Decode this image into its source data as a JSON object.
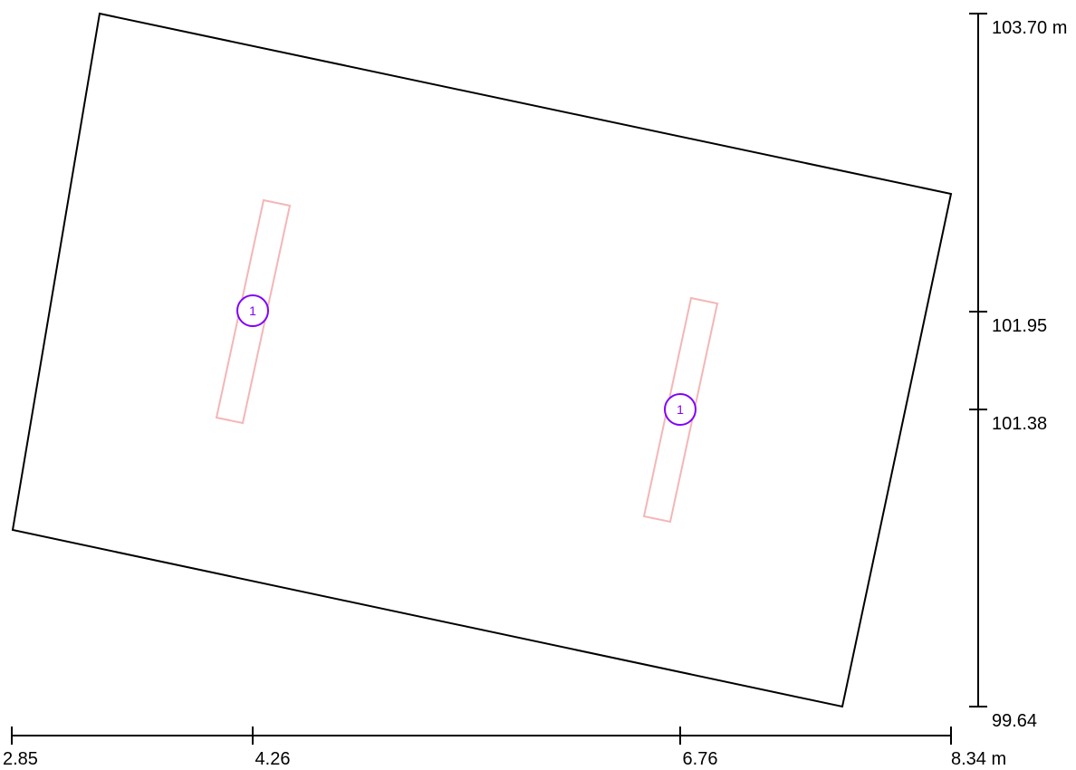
{
  "drawing": {
    "background": "#ffffff",
    "outline_color": "#000000",
    "member_color": "#f4b6b6",
    "marker_color": "#8000ff",
    "x_axis": {
      "unit": "m",
      "ticks": [
        {
          "value": 2.85,
          "label": "2.85"
        },
        {
          "value": 4.26,
          "label": "4.26"
        },
        {
          "value": 6.76,
          "label": "6.76"
        },
        {
          "value": 8.34,
          "label": "8.34 m"
        }
      ]
    },
    "y_axis": {
      "unit": "m",
      "ticks": [
        {
          "value": 103.7,
          "label": "103.70 m"
        },
        {
          "value": 101.95,
          "label": "101.95"
        },
        {
          "value": 101.38,
          "label": "101.38"
        },
        {
          "value": 99.64,
          "label": "99.64"
        }
      ]
    },
    "members": [
      {
        "marker_label": "1"
      },
      {
        "marker_label": "1"
      }
    ]
  }
}
